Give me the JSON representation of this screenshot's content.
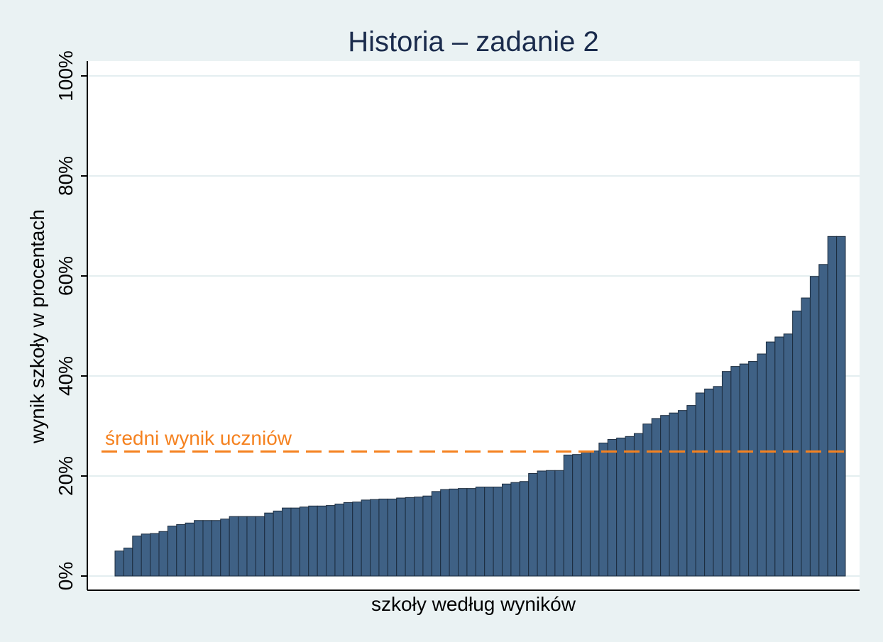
{
  "chart_data": {
    "type": "bar",
    "title": "Historia – zadanie 2",
    "xlabel": "szkoły według wyników",
    "ylabel": "wynik szkoły w procentach",
    "ylim": [
      0,
      100
    ],
    "yticks": [
      {
        "value": 0,
        "label": "0%"
      },
      {
        "value": 20,
        "label": "20%"
      },
      {
        "value": 40,
        "label": "40%"
      },
      {
        "value": 60,
        "label": "60%"
      },
      {
        "value": 80,
        "label": "80%"
      },
      {
        "value": 100,
        "label": "100%"
      }
    ],
    "grid": true,
    "values": [
      5.0,
      5.6,
      8.0,
      8.4,
      8.5,
      8.9,
      10.0,
      10.3,
      10.6,
      11.1,
      11.1,
      11.1,
      11.4,
      11.9,
      11.9,
      11.9,
      11.9,
      12.6,
      13.0,
      13.6,
      13.6,
      13.8,
      14.0,
      14.0,
      14.1,
      14.4,
      14.7,
      14.8,
      15.2,
      15.3,
      15.4,
      15.4,
      15.6,
      15.7,
      15.8,
      16.0,
      16.9,
      17.3,
      17.4,
      17.5,
      17.5,
      17.8,
      17.8,
      17.8,
      18.4,
      18.7,
      18.9,
      20.5,
      21.0,
      21.1,
      21.1,
      24.2,
      24.3,
      25.0,
      25.0,
      26.6,
      27.3,
      27.6,
      27.9,
      28.5,
      30.4,
      31.5,
      32.1,
      32.6,
      33.1,
      34.1,
      36.6,
      37.4,
      37.9,
      40.9,
      41.9,
      42.4,
      42.9,
      44.4,
      46.8,
      47.8,
      48.4,
      53.0,
      55.6,
      59.9,
      62.3,
      67.9,
      67.9
    ],
    "bar_color": "#3f6185",
    "mean_line": {
      "value": 24.9,
      "label": "średni wynik uczniów",
      "color": "#f58220",
      "style": "dashed"
    }
  }
}
